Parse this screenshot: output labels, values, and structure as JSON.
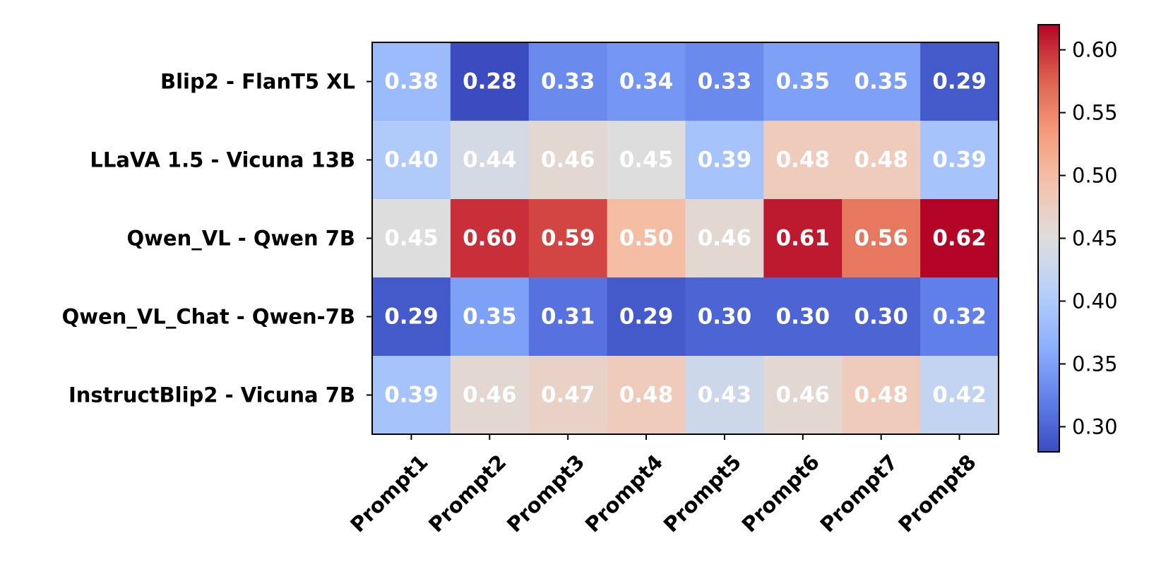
{
  "chart_data": {
    "type": "heatmap",
    "rows": [
      "Blip2 - FlanT5 XL",
      "LLaVA 1.5 - Vicuna 13B",
      "Qwen_VL - Qwen 7B",
      "Qwen_VL_Chat - Qwen-7B",
      "InstructBlip2 - Vicuna 7B"
    ],
    "columns": [
      "Prompt1",
      "Prompt2",
      "Prompt3",
      "Prompt4",
      "Prompt5",
      "Prompt6",
      "Prompt7",
      "Prompt8"
    ],
    "values": [
      [
        0.38,
        0.28,
        0.33,
        0.34,
        0.33,
        0.35,
        0.35,
        0.29
      ],
      [
        0.4,
        0.44,
        0.46,
        0.45,
        0.39,
        0.48,
        0.48,
        0.39
      ],
      [
        0.45,
        0.6,
        0.59,
        0.5,
        0.46,
        0.61,
        0.56,
        0.62
      ],
      [
        0.29,
        0.35,
        0.31,
        0.29,
        0.3,
        0.3,
        0.3,
        0.32
      ],
      [
        0.39,
        0.46,
        0.47,
        0.48,
        0.43,
        0.46,
        0.48,
        0.42
      ]
    ],
    "labels": [
      [
        "0.38",
        "0.28",
        "0.33",
        "0.34",
        "0.33",
        "0.35",
        "0.35",
        "0.29"
      ],
      [
        "0.40",
        "0.44",
        "0.46",
        "0.45",
        "0.39",
        "0.48",
        "0.48",
        "0.39"
      ],
      [
        "0.45",
        "0.60",
        "0.59",
        "0.50",
        "0.46",
        "0.61",
        "0.56",
        "0.62"
      ],
      [
        "0.29",
        "0.35",
        "0.31",
        "0.29",
        "0.30",
        "0.30",
        "0.30",
        "0.32"
      ],
      [
        "0.39",
        "0.46",
        "0.47",
        "0.48",
        "0.43",
        "0.46",
        "0.48",
        "0.42"
      ]
    ],
    "colormap": "coolwarm",
    "vmin": 0.28,
    "vmax": 0.62,
    "colorbar": {
      "position": "right",
      "ticks": [
        0.3,
        0.35,
        0.4,
        0.45,
        0.5,
        0.55,
        0.6
      ],
      "tick_labels": [
        "0.30",
        "0.35",
        "0.40",
        "0.45",
        "0.50",
        "0.55",
        "0.60"
      ]
    },
    "title": "",
    "xlabel": "",
    "ylabel": "",
    "grid": false
  }
}
